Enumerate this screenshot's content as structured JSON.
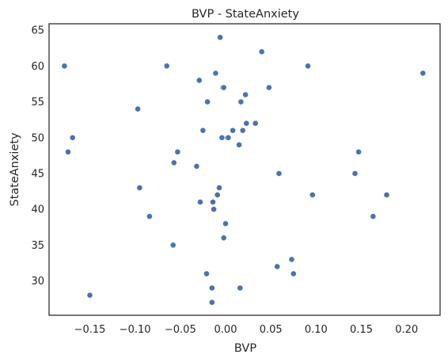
{
  "chart_data": {
    "type": "scatter",
    "title": "BVP - StateAnxiety",
    "xlabel": "BVP",
    "ylabel": "StateAnxiety",
    "xlim": [
      -0.195,
      0.237
    ],
    "ylim": [
      25.2,
      65.9
    ],
    "xticks": [
      -0.15,
      -0.1,
      -0.05,
      0.0,
      0.05,
      0.1,
      0.15,
      0.2
    ],
    "xtick_labels": [
      "−0.15",
      "−0.10",
      "−0.05",
      "0.00",
      "0.05",
      "0.10",
      "0.15",
      "0.20"
    ],
    "yticks": [
      30,
      35,
      40,
      45,
      50,
      55,
      60,
      65
    ],
    "ytick_labels": [
      "30",
      "35",
      "40",
      "45",
      "50",
      "55",
      "60",
      "65"
    ],
    "grid": false,
    "marker_color": "#4c72b0",
    "x": [
      -0.178,
      -0.174,
      -0.169,
      -0.15,
      -0.097,
      -0.095,
      -0.084,
      -0.065,
      -0.058,
      -0.057,
      -0.053,
      -0.032,
      -0.029,
      -0.028,
      -0.025,
      -0.021,
      -0.02,
      -0.015,
      -0.015,
      -0.014,
      -0.013,
      -0.011,
      -0.009,
      -0.007,
      -0.006,
      -0.004,
      -0.003,
      -0.002,
      -0.002,
      0.0,
      0.002,
      0.003,
      0.008,
      0.015,
      0.016,
      0.017,
      0.019,
      0.022,
      0.023,
      0.033,
      0.04,
      0.048,
      0.057,
      0.059,
      0.073,
      0.075,
      0.091,
      0.096,
      0.143,
      0.147,
      0.163,
      0.178,
      0.218
    ],
    "y": [
      60,
      48,
      50,
      28,
      54,
      43,
      39,
      60,
      35,
      46.5,
      48,
      46,
      58,
      41,
      51,
      31,
      55,
      27,
      29,
      41,
      40,
      59,
      42,
      43,
      64,
      50,
      57,
      57,
      36,
      38,
      50,
      50,
      51,
      49,
      29,
      55,
      51,
      56,
      52,
      52,
      62,
      57,
      32,
      45,
      33,
      31,
      60,
      42,
      45,
      48,
      39,
      42,
      59
    ]
  }
}
